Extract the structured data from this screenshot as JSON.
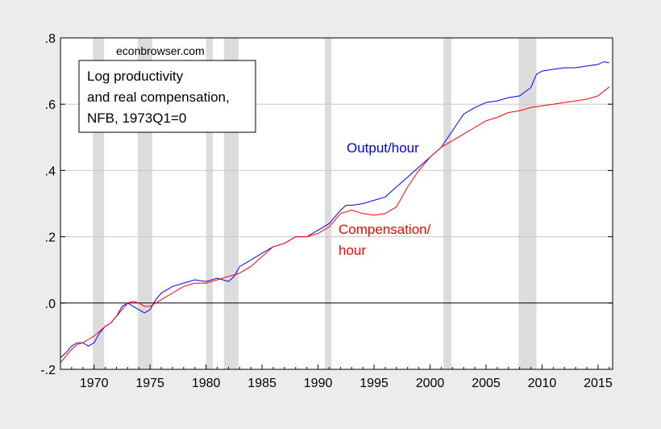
{
  "chart_data": {
    "type": "line",
    "source_note": "econbrowser.com",
    "title_lines": [
      "Log productivity",
      "and real compensation,",
      "NFB, 1973Q1=0"
    ],
    "xlim": [
      1967,
      2016.3
    ],
    "ylim": [
      -0.2,
      0.8
    ],
    "x_ticks": [
      1970,
      1975,
      1980,
      1985,
      1990,
      1995,
      2000,
      2005,
      2010,
      2015
    ],
    "x_tick_labels": [
      "1970",
      "1975",
      "1980",
      "1985",
      "1990",
      "1995",
      "2000",
      "2005",
      "2010",
      "2015"
    ],
    "y_ticks": [
      -0.2,
      0.0,
      0.2,
      0.4,
      0.6,
      0.8
    ],
    "y_tick_labels": [
      "-.2",
      ".0",
      ".2",
      ".4",
      ".6",
      ".8"
    ],
    "grid": true,
    "zero_line": true,
    "recession_color": "#dcdcdc",
    "recessions": [
      [
        1969.9,
        1970.9
      ],
      [
        1973.9,
        1975.2
      ],
      [
        1980.0,
        1980.6
      ],
      [
        1981.6,
        1982.9
      ],
      [
        1990.6,
        1991.2
      ],
      [
        2001.2,
        2001.9
      ],
      [
        2007.9,
        2009.5
      ]
    ],
    "series": [
      {
        "name": "Output/hour",
        "label_lines": [
          "Output/hour"
        ],
        "color": "#0000ff",
        "x": [
          1967.0,
          1967.5,
          1968.0,
          1968.5,
          1969.0,
          1969.5,
          1970.0,
          1970.5,
          1971.0,
          1971.5,
          1972.0,
          1972.5,
          1973.0,
          1973.5,
          1974.0,
          1974.5,
          1975.0,
          1975.5,
          1976.0,
          1976.5,
          1977.0,
          1978.0,
          1979.0,
          1980.0,
          1981.0,
          1981.5,
          1982.0,
          1982.5,
          1983.0,
          1984.0,
          1985.0,
          1986.0,
          1987.0,
          1988.0,
          1989.0,
          1990.0,
          1991.0,
          1992.0,
          1992.5,
          1993.0,
          1994.0,
          1995.0,
          1996.0,
          1997.0,
          1998.0,
          1999.0,
          2000.0,
          2001.0,
          2002.0,
          2003.0,
          2004.0,
          2005.0,
          2006.0,
          2007.0,
          2008.0,
          2009.0,
          2009.5,
          2010.0,
          2011.0,
          2012.0,
          2013.0,
          2014.0,
          2015.0,
          2015.5,
          2016.0
        ],
        "values": [
          -0.165,
          -0.15,
          -0.13,
          -0.12,
          -0.12,
          -0.13,
          -0.12,
          -0.09,
          -0.07,
          -0.06,
          -0.04,
          -0.01,
          0.0,
          -0.01,
          -0.02,
          -0.03,
          -0.02,
          0.01,
          0.03,
          0.04,
          0.05,
          0.06,
          0.07,
          0.065,
          0.075,
          0.07,
          0.065,
          0.08,
          0.11,
          0.13,
          0.15,
          0.17,
          0.18,
          0.2,
          0.2,
          0.22,
          0.24,
          0.28,
          0.295,
          0.295,
          0.3,
          0.31,
          0.32,
          0.35,
          0.38,
          0.41,
          0.44,
          0.47,
          0.52,
          0.57,
          0.59,
          0.605,
          0.61,
          0.62,
          0.625,
          0.65,
          0.69,
          0.7,
          0.705,
          0.71,
          0.71,
          0.715,
          0.72,
          0.728,
          0.725
        ]
      },
      {
        "name": "Compensation/hour",
        "label_lines": [
          "Compensation/",
          "hour"
        ],
        "color": "#ff0000",
        "x": [
          1967.0,
          1967.5,
          1968.0,
          1968.5,
          1969.0,
          1969.5,
          1970.0,
          1970.5,
          1971.0,
          1971.5,
          1972.0,
          1972.5,
          1973.0,
          1973.5,
          1974.0,
          1974.5,
          1975.0,
          1975.5,
          1976.0,
          1977.0,
          1978.0,
          1979.0,
          1980.0,
          1981.0,
          1982.0,
          1982.5,
          1983.0,
          1984.0,
          1985.0,
          1986.0,
          1987.0,
          1988.0,
          1989.0,
          1990.0,
          1991.0,
          1992.0,
          1993.0,
          1994.0,
          1995.0,
          1996.0,
          1997.0,
          1998.0,
          1999.0,
          2000.0,
          2001.0,
          2002.0,
          2003.0,
          2004.0,
          2005.0,
          2006.0,
          2007.0,
          2008.0,
          2009.0,
          2010.0,
          2011.0,
          2012.0,
          2013.0,
          2014.0,
          2015.0,
          2016.0
        ],
        "values": [
          -0.18,
          -0.16,
          -0.14,
          -0.125,
          -0.12,
          -0.11,
          -0.1,
          -0.085,
          -0.07,
          -0.06,
          -0.04,
          -0.02,
          0.0,
          0.005,
          0.0,
          -0.01,
          -0.01,
          0.0,
          0.01,
          0.03,
          0.05,
          0.06,
          0.06,
          0.07,
          0.08,
          0.085,
          0.09,
          0.11,
          0.14,
          0.17,
          0.18,
          0.2,
          0.2,
          0.21,
          0.23,
          0.27,
          0.28,
          0.27,
          0.265,
          0.27,
          0.29,
          0.35,
          0.4,
          0.44,
          0.47,
          0.49,
          0.51,
          0.53,
          0.55,
          0.56,
          0.575,
          0.58,
          0.59,
          0.595,
          0.6,
          0.605,
          0.61,
          0.615,
          0.625,
          0.652
        ]
      }
    ]
  }
}
